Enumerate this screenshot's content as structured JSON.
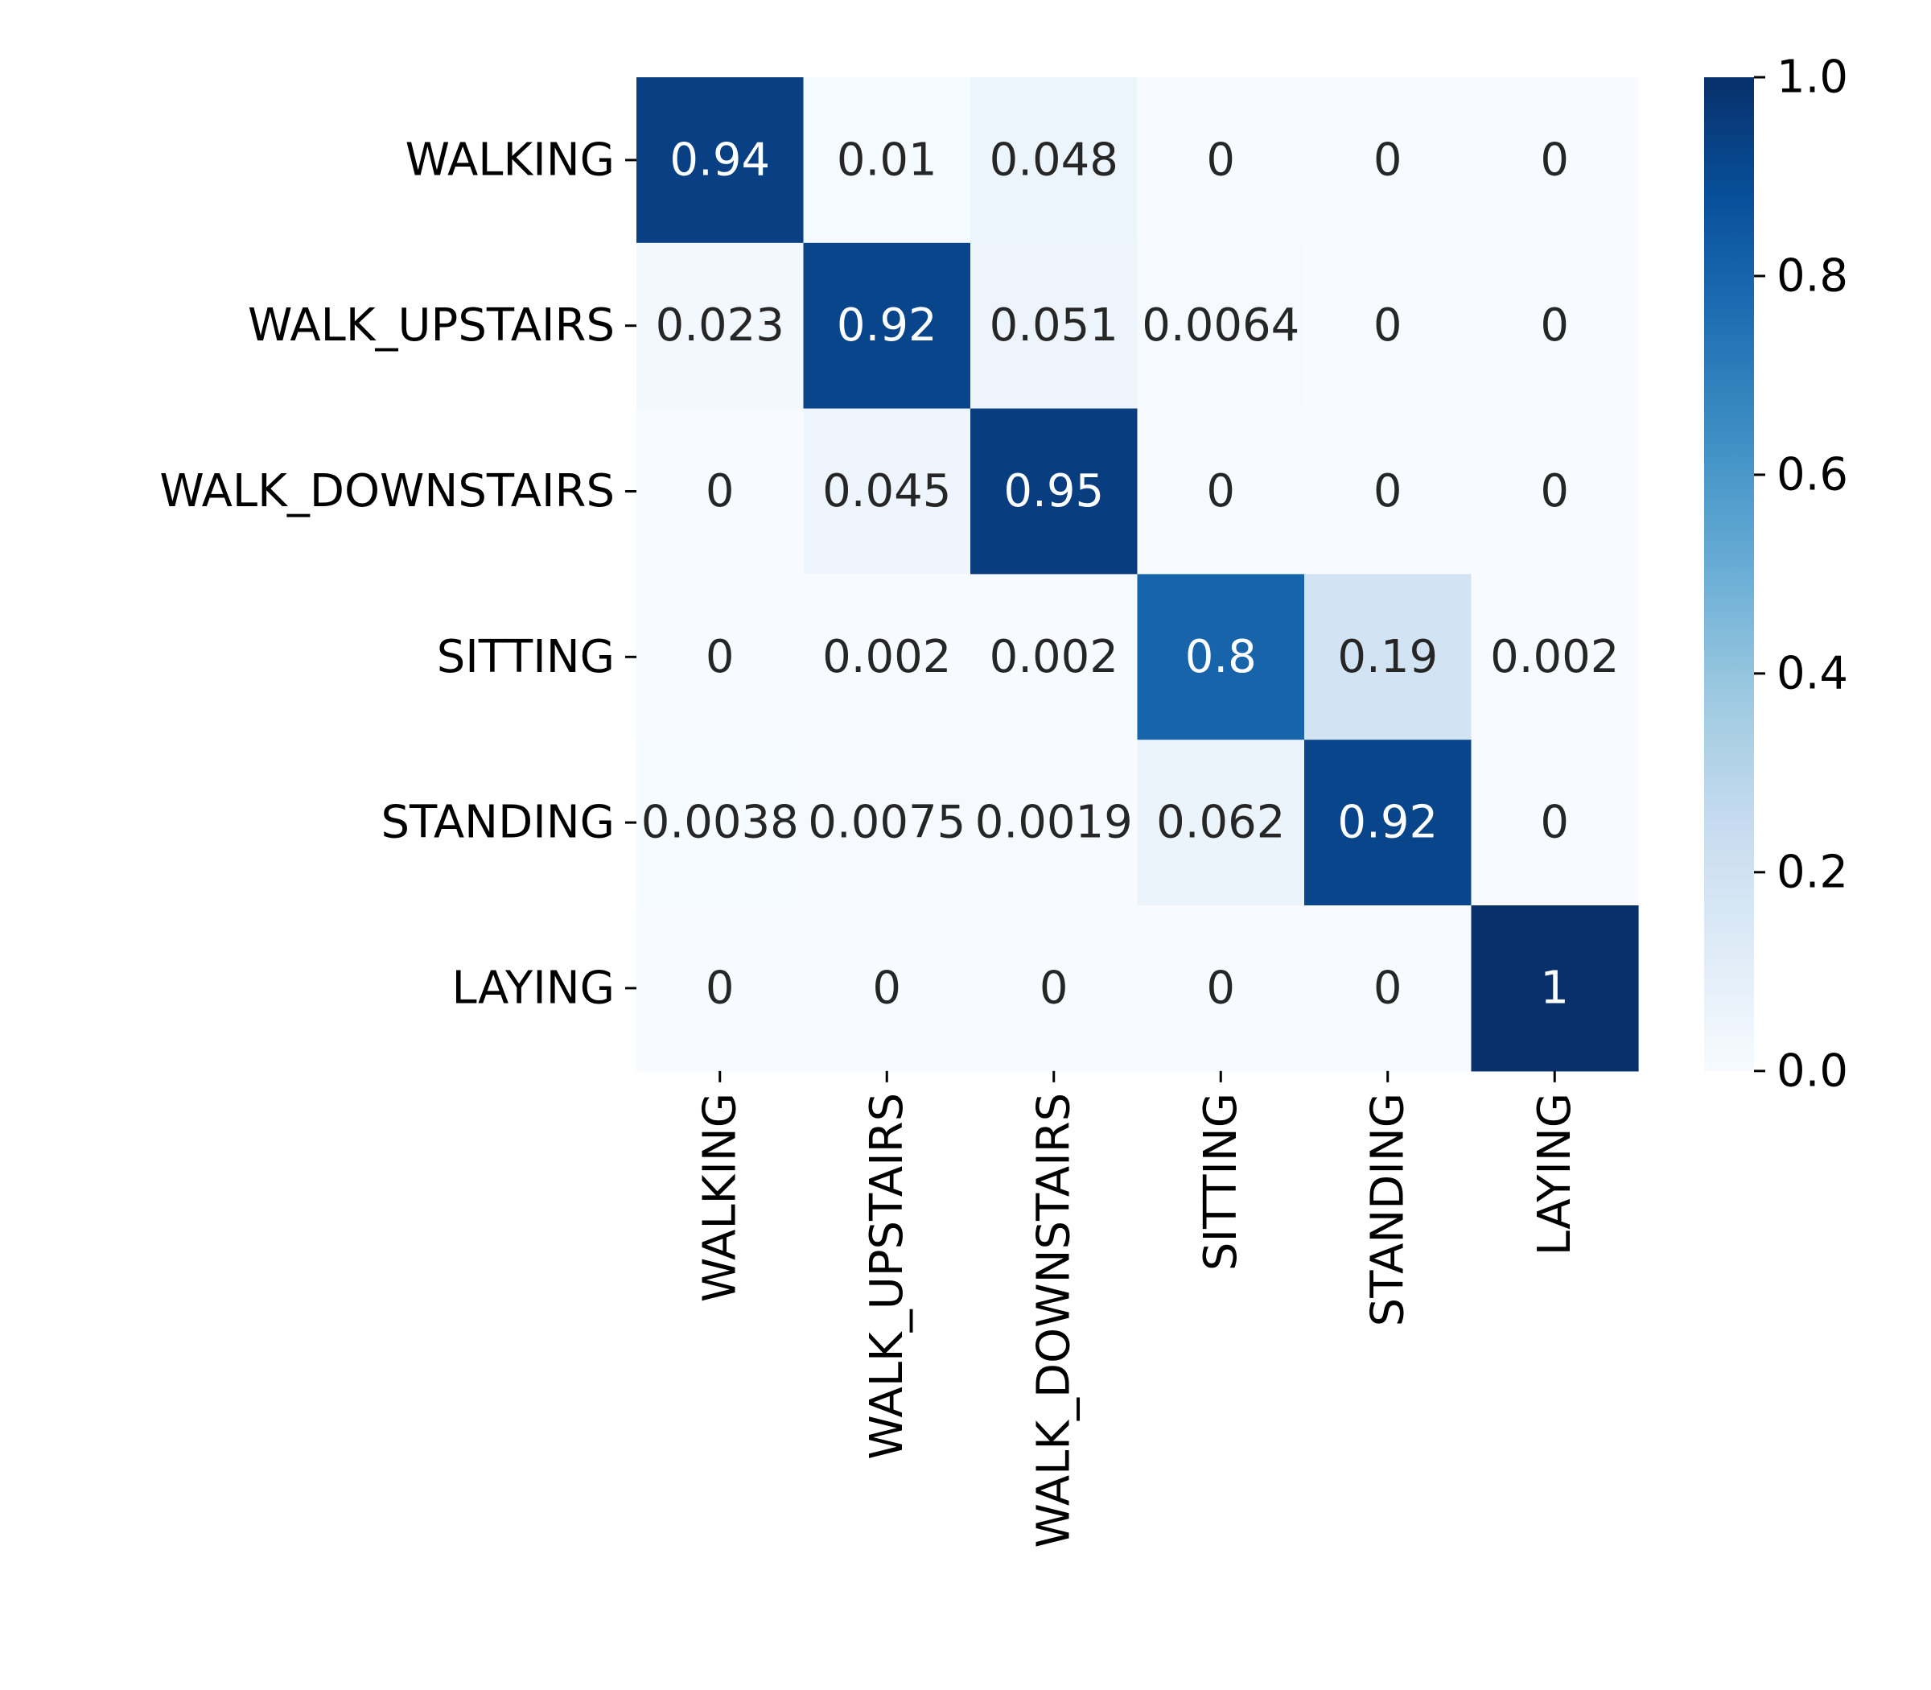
{
  "chart_data": {
    "type": "heatmap",
    "rows": [
      "WALKING",
      "WALK_UPSTAIRS",
      "WALK_DOWNSTAIRS",
      "SITTING",
      "STANDING",
      "LAYING"
    ],
    "columns": [
      "WALKING",
      "WALK_UPSTAIRS",
      "WALK_DOWNSTAIRS",
      "SITTING",
      "STANDING",
      "LAYING"
    ],
    "values": [
      [
        0.94,
        0.01,
        0.048,
        0,
        0,
        0
      ],
      [
        0.023,
        0.92,
        0.051,
        0.0064,
        0,
        0
      ],
      [
        0,
        0.045,
        0.95,
        0,
        0,
        0
      ],
      [
        0,
        0.002,
        0.002,
        0.8,
        0.19,
        0.002
      ],
      [
        0.0038,
        0.0075,
        0.0019,
        0.062,
        0.92,
        0
      ],
      [
        0,
        0,
        0,
        0,
        0,
        1
      ]
    ],
    "annotations": [
      [
        "0.94",
        "0.01",
        "0.048",
        "0",
        "0",
        "0"
      ],
      [
        "0.023",
        "0.92",
        "0.051",
        "0.0064",
        "0",
        "0"
      ],
      [
        "0",
        "0.045",
        "0.95",
        "0",
        "0",
        "0"
      ],
      [
        "0",
        "0.002",
        "0.002",
        "0.8",
        "0.19",
        "0.002"
      ],
      [
        "0.0038",
        "0.0075",
        "0.0019",
        "0.062",
        "0.92",
        "0"
      ],
      [
        "0",
        "0",
        "0",
        "0",
        "0",
        "1"
      ]
    ],
    "colormap": "Blues",
    "colorbar": {
      "range": [
        0.0,
        1.0
      ],
      "ticks": [
        "0.0",
        "0.2",
        "0.4",
        "0.6",
        "0.8",
        "1.0"
      ]
    },
    "colors": {
      "min": "#f7fbff",
      "max": "#08306b",
      "text_light": "#ffffff",
      "text_dark": "#262626"
    }
  }
}
